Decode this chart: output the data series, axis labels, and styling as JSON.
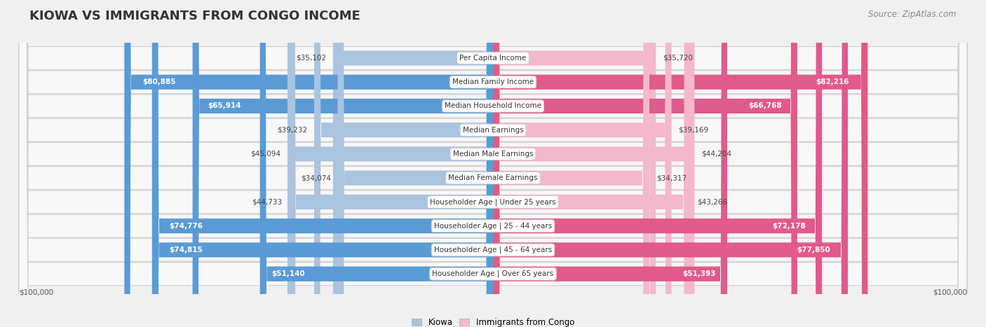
{
  "title": "Kiowa vs Immigrants from Congo Income",
  "title_display": "KIOWA VS IMMIGRANTS FROM CONGO INCOME",
  "source": "Source: ZipAtlas.com",
  "categories": [
    "Per Capita Income",
    "Median Family Income",
    "Median Household Income",
    "Median Earnings",
    "Median Male Earnings",
    "Median Female Earnings",
    "Householder Age | Under 25 years",
    "Householder Age | 25 - 44 years",
    "Householder Age | 45 - 64 years",
    "Householder Age | Over 65 years"
  ],
  "kiowa_values": [
    35102,
    80885,
    65914,
    39232,
    45094,
    34074,
    44733,
    74776,
    74815,
    51140
  ],
  "congo_values": [
    35720,
    82216,
    66768,
    39169,
    44204,
    34317,
    43266,
    72178,
    77850,
    51393
  ],
  "kiowa_labels": [
    "$35,102",
    "$80,885",
    "$65,914",
    "$39,232",
    "$45,094",
    "$34,074",
    "$44,733",
    "$74,776",
    "$74,815",
    "$51,140"
  ],
  "congo_labels": [
    "$35,720",
    "$82,216",
    "$66,768",
    "$39,169",
    "$44,204",
    "$34,317",
    "$43,266",
    "$72,178",
    "$77,850",
    "$51,393"
  ],
  "max_value": 100000,
  "kiowa_color_light": "#aac4e0",
  "kiowa_color_dark": "#5b9bd5",
  "congo_color_light": "#f4b8cc",
  "congo_color_dark": "#e05a8a",
  "inside_label_threshold": 50000,
  "background_color": "#f0f0f0",
  "row_bg_color": "#f8f8f8",
  "row_border_color": "#d0d0d0",
  "x_label_left": "$100,000",
  "x_label_right": "$100,000",
  "legend_kiowa": "Kiowa",
  "legend_congo": "Immigrants from Congo",
  "title_fontsize": 13,
  "source_fontsize": 8.5,
  "bar_height": 0.6,
  "cat_label_fontsize": 7.5,
  "value_label_fontsize": 7.5
}
